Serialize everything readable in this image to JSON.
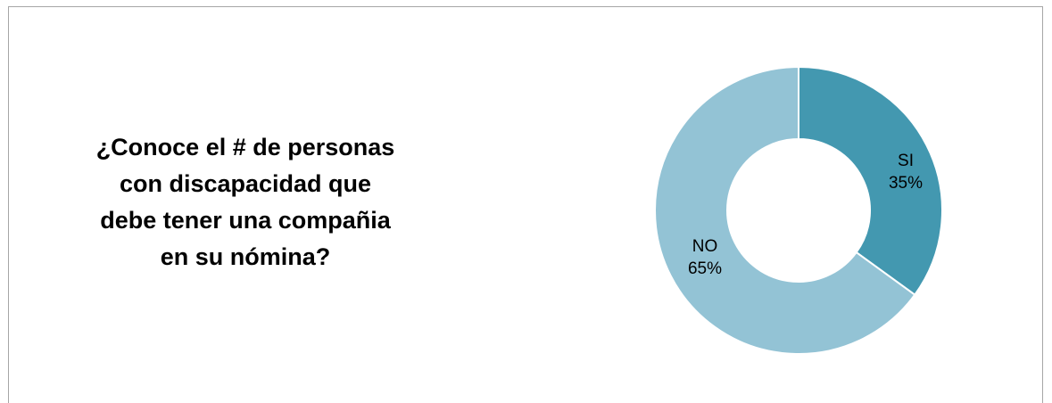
{
  "chart_data": {
    "type": "pie",
    "title_lines": [
      "¿Conoce el # de personas",
      "con discapacidad que",
      "debe tener una compañia",
      "en su nómina?"
    ],
    "categories": [
      "SI",
      "NO"
    ],
    "values": [
      35,
      65
    ],
    "value_labels": [
      "35%",
      "65%"
    ],
    "colors": [
      "#4398b0",
      "#93c3d5"
    ],
    "legend": "none"
  }
}
